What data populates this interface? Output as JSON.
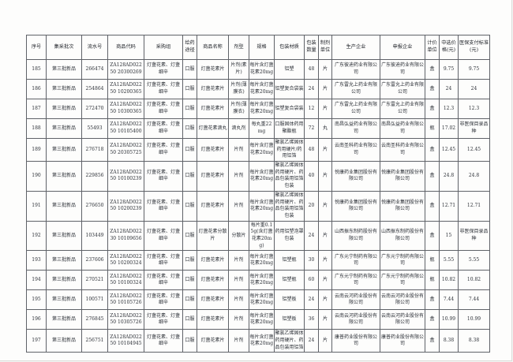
{
  "colors": {
    "paper": "#fdfdfc",
    "grid": "#5f6268",
    "text": "#2b2f36"
  },
  "table": {
    "headers": [
      "序号",
      "集采批次",
      "流水号",
      "商品代码",
      "采购组",
      "给药途径",
      "商品名称",
      "剂型",
      "规格",
      "包装材质",
      "包装数量",
      "制剂单位",
      "生产企业",
      "申报企业",
      "计价单位",
      "中选价格(元)",
      "医保支付标准(元)"
    ],
    "rows": [
      [
        "185",
        "第三批新品",
        "266474",
        "ZA128AD02250 20300269",
        "灯盏花素、灯盏细辛",
        "口服",
        "灯盏花素片",
        "片剂(素片)",
        "每片含灯盏花素20mg",
        "铝塑",
        "48",
        "片",
        "广东彼迪药业有限公司",
        "广东彼迪药业有限公司",
        "盒",
        "9.75",
        "9.75"
      ],
      [
        "186",
        "第三批新品",
        "254864",
        "ZA128AD02250 10200365",
        "灯盏花素、灯盏细辛",
        "口服",
        "灯盏花素片",
        "片剂(薄膜衣)",
        "每片含灯盏花素20mg",
        "铝塑复合袋装",
        "24",
        "片",
        "广东雷允上药业有限公司",
        "广东雷允上药业有限公司",
        "盒",
        "24",
        "24"
      ],
      [
        "187",
        "第三批新品",
        "272470",
        "ZA128AD02250 10300365",
        "灯盏花素、灯盏细辛",
        "口服",
        "灯盏花素片",
        "片剂(薄膜衣)",
        "每片含灯盏花素20mg",
        "铝塑复合袋装",
        "12",
        "片",
        "广东雷允上药业有限公司",
        "广东雷允上药业有限公司",
        "盒",
        "12.3",
        "12.3"
      ],
      [
        "188",
        "第三批新品",
        "55493",
        "ZA128AD02250 10105400",
        "灯盏花素、灯盏细辛",
        "口服",
        "灯盏花素滴丸",
        "滴丸剂",
        "每丸重22mg",
        "口服固体药用聚酯瓶",
        "72",
        "丸",
        "南昌弘益药业有限公司",
        "南昌弘益药业有限公司",
        "瓶",
        "17.02",
        "非医保目录品种"
      ],
      [
        "189",
        "第三批新品",
        "276718",
        "ZA128AD02250 20305725",
        "灯盏花素、灯盏细辛",
        "口服",
        "灯盏花素片",
        "片剂",
        "每片含灯盏花素20mg",
        "聚氯乙烯固体药用硬片/药用铝箔",
        "48",
        "片",
        "云南圣科药业有限公司",
        "云南圣科药业有限公司",
        "盒",
        "12.45",
        "12.45"
      ],
      [
        "190",
        "第三批新品",
        "229856",
        "ZA128AD02250 10100239",
        "灯盏花素、灯盏细辛",
        "口服",
        "灯盏花素片",
        "片剂",
        "每片含灯盏花素20mg",
        "聚氯乙烯固体药用硬片、药品包装用铝箔包装",
        "40",
        "片",
        "悦康药业集团股份有限公司",
        "悦康药业集团股份有限公司",
        "盒",
        "24.8",
        "24.8"
      ],
      [
        "191",
        "第三批新品",
        "276650",
        "ZA128AD02250 10200239",
        "灯盏花素、灯盏细辛",
        "口服",
        "灯盏花素片",
        "片剂",
        "每片含灯盏花素20mg",
        "聚氯乙烯固体药用硬片、药品包装用铝箔包装",
        "20",
        "片",
        "悦康药业集团股份有限公司",
        "悦康药业集团股份有限公司",
        "盒",
        "12.71",
        "12.71"
      ],
      [
        "192",
        "第三批新品",
        "103449",
        "ZA128AD02230 10109656",
        "灯盏花素、灯盏细辛",
        "口服",
        "灯盏花素分散片",
        "分散片",
        "每片重0.15g(含灯盏花素20mg)",
        "药用铝塑泡罩包装",
        "24",
        "片",
        "山西振东制药股份有限公司",
        "山西振东制药股份有限公司",
        "盒",
        "15",
        "非医保目录品种"
      ],
      [
        "193",
        "第三批新品",
        "237606",
        "ZA128AD02250 10200324",
        "灯盏花素、灯盏细辛",
        "口服",
        "灯盏花素片",
        "片剂",
        "每片含灯盏花素20mg",
        "铝塑瓶",
        "30",
        "片",
        "广东元宁制药有限公司",
        "广东元宁制药有限公司",
        "瓶",
        "5.55",
        "5.55"
      ],
      [
        "194",
        "第三批新品",
        "270521",
        "ZA128AD02250 10100324",
        "灯盏花素、灯盏细辛",
        "口服",
        "灯盏花素片",
        "片剂",
        "每片含灯盏花素20mg",
        "铝塑瓶",
        "60",
        "片",
        "广东元宁制药有限公司",
        "广东元宁制药有限公司",
        "瓶",
        "10.82",
        "10.82"
      ],
      [
        "195",
        "第三批新品",
        "100571",
        "ZA128AD02250 10105726",
        "灯盏花素、灯盏细辛",
        "口服",
        "灯盏花素片",
        "片剂",
        "每片含灯盏花素20mg",
        "铝塑板",
        "24",
        "片",
        "云南云河药业股份有限公司",
        "云南云河药业股份有限公司",
        "盒",
        "7.44",
        "7.44"
      ],
      [
        "196",
        "第三批新品",
        "276845",
        "ZA128AD02250 10305726",
        "灯盏花素、灯盏细辛",
        "口服",
        "灯盏花素片",
        "片剂",
        "每片含灯盏花素20mg",
        "铝塑板",
        "36",
        "片",
        "云南云河药业股份有限公司",
        "云南云河药业股份有限公司",
        "盒",
        "10.99",
        "10.99"
      ],
      [
        "197",
        "第三批新品",
        "256751",
        "ZA128AD02250 10104945",
        "灯盏花素、灯盏细辛",
        "口服",
        "灯盏花素片",
        "片剂",
        "每片含灯盏花素20mg",
        "聚氯乙烯固体药用硬片、药品包装用铝箔",
        "24",
        "片",
        "康普药业股份有限公司",
        "康普药业股份有限公司",
        "盒",
        "8.38",
        "8.38"
      ]
    ]
  }
}
